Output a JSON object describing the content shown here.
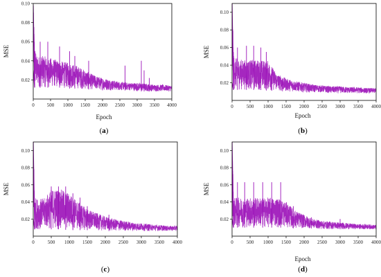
{
  "chart_data": [
    {
      "type": "line",
      "panel_label": "a",
      "xlabel": "Epoch",
      "ylabel": "MSE",
      "xlim": [
        0,
        4000
      ],
      "ylim": [
        0,
        0.1
      ],
      "x_ticks": [
        "0",
        "500",
        "1000",
        "1500",
        "2000",
        "2500",
        "3000",
        "3500",
        "4000"
      ],
      "y_ticks": [
        "0.02",
        "0.04",
        "0.06",
        "0.08",
        "0.10"
      ],
      "series": [
        {
          "color": "#9b10b8",
          "x": [
            0,
            50,
            100,
            300,
            500,
            750,
            1000,
            1250,
            1500,
            1750,
            2000,
            2250,
            2500,
            2750,
            3000,
            3250,
            3500,
            3750,
            4000
          ],
          "y_min": [
            0.03,
            0.012,
            0.012,
            0.012,
            0.012,
            0.012,
            0.011,
            0.011,
            0.01,
            0.01,
            0.009,
            0.009,
            0.009,
            0.009,
            0.008,
            0.008,
            0.008,
            0.008,
            0.008
          ],
          "y_max": [
            0.098,
            0.055,
            0.045,
            0.045,
            0.043,
            0.04,
            0.038,
            0.035,
            0.03,
            0.025,
            0.022,
            0.02,
            0.018,
            0.017,
            0.017,
            0.016,
            0.015,
            0.015,
            0.014
          ],
          "spikes": [
            [
              200,
              0.06
            ],
            [
              420,
              0.06
            ],
            [
              760,
              0.055
            ],
            [
              1050,
              0.05
            ],
            [
              1200,
              0.045
            ],
            [
              1600,
              0.04
            ],
            [
              2650,
              0.035
            ],
            [
              3120,
              0.04
            ],
            [
              3200,
              0.03
            ],
            [
              3350,
              0.022
            ]
          ]
        }
      ]
    },
    {
      "type": "line",
      "panel_label": "b",
      "xlabel": "Epoch",
      "ylabel": "MSE",
      "xlim": [
        0,
        4000
      ],
      "ylim": [
        0,
        0.11
      ],
      "x_ticks": [
        "0",
        "500",
        "1000",
        "1500",
        "2000",
        "2500",
        "3000",
        "3500",
        "4000"
      ],
      "y_ticks": [
        "0.02",
        "0.04",
        "0.06",
        "0.08",
        "0.10"
      ],
      "series": [
        {
          "color": "#9b10b8",
          "x": [
            0,
            50,
            100,
            300,
            500,
            750,
            1000,
            1250,
            1500,
            1750,
            2000,
            2250,
            2500,
            2750,
            3000,
            3250,
            3500,
            3750,
            4000
          ],
          "y_min": [
            0.02,
            0.012,
            0.012,
            0.012,
            0.012,
            0.012,
            0.011,
            0.011,
            0.01,
            0.01,
            0.009,
            0.009,
            0.009,
            0.008,
            0.008,
            0.008,
            0.008,
            0.008,
            0.008
          ],
          "y_max": [
            0.11,
            0.05,
            0.048,
            0.046,
            0.046,
            0.046,
            0.045,
            0.03,
            0.025,
            0.022,
            0.02,
            0.018,
            0.017,
            0.016,
            0.016,
            0.015,
            0.015,
            0.014,
            0.014
          ],
          "spikes": [
            [
              150,
              0.06
            ],
            [
              400,
              0.062
            ],
            [
              600,
              0.062
            ],
            [
              800,
              0.06
            ],
            [
              950,
              0.055
            ],
            [
              1100,
              0.035
            ],
            [
              1400,
              0.025
            ]
          ]
        }
      ]
    },
    {
      "type": "line",
      "panel_label": "c",
      "xlabel": "",
      "ylabel": "MSE",
      "xlim": [
        0,
        4000
      ],
      "ylim": [
        0,
        0.11
      ],
      "x_ticks": [
        "0",
        "500",
        "1000",
        "1500",
        "2000",
        "2500",
        "3000",
        "3500",
        "4000"
      ],
      "y_ticks": [
        "0.02",
        "0.04",
        "0.06",
        "0.08",
        "0.10"
      ],
      "series": [
        {
          "color": "#9b10b8",
          "x": [
            0,
            50,
            100,
            300,
            500,
            750,
            1000,
            1250,
            1500,
            1750,
            2000,
            2250,
            2500,
            2750,
            3000,
            3250,
            3500,
            3750,
            4000
          ],
          "y_min": [
            0.02,
            0.008,
            0.008,
            0.008,
            0.008,
            0.008,
            0.007,
            0.007,
            0.007,
            0.007,
            0.006,
            0.006,
            0.006,
            0.006,
            0.006,
            0.006,
            0.006,
            0.006,
            0.006
          ],
          "y_max": [
            0.11,
            0.045,
            0.044,
            0.044,
            0.055,
            0.055,
            0.05,
            0.04,
            0.032,
            0.027,
            0.023,
            0.02,
            0.018,
            0.016,
            0.015,
            0.014,
            0.013,
            0.012,
            0.012
          ],
          "spikes": [
            [
              500,
              0.058
            ],
            [
              700,
              0.058
            ],
            [
              900,
              0.058
            ],
            [
              1100,
              0.05
            ],
            [
              1300,
              0.045
            ],
            [
              1500,
              0.035
            ],
            [
              2100,
              0.025
            ]
          ]
        }
      ]
    },
    {
      "type": "line",
      "panel_label": "d",
      "xlabel": "Epoch",
      "ylabel": "MSE",
      "xlim": [
        0,
        4000
      ],
      "ylim": [
        0,
        0.11
      ],
      "x_ticks": [
        "0",
        "500",
        "1000",
        "1500",
        "2000",
        "2500",
        "3000",
        "3500",
        "4000"
      ],
      "y_ticks": [
        "0.02",
        "0.04",
        "0.06",
        "0.08",
        "0.10"
      ],
      "series": [
        {
          "color": "#9b10b8",
          "x": [
            0,
            50,
            100,
            300,
            500,
            750,
            1000,
            1250,
            1500,
            1750,
            2000,
            2250,
            2500,
            2750,
            3000,
            3250,
            3500,
            3750,
            4000
          ],
          "y_min": [
            0.02,
            0.01,
            0.01,
            0.01,
            0.01,
            0.01,
            0.01,
            0.01,
            0.01,
            0.009,
            0.009,
            0.009,
            0.008,
            0.008,
            0.008,
            0.008,
            0.008,
            0.008,
            0.008
          ],
          "y_max": [
            0.11,
            0.045,
            0.045,
            0.045,
            0.045,
            0.045,
            0.045,
            0.045,
            0.04,
            0.03,
            0.025,
            0.02,
            0.018,
            0.017,
            0.016,
            0.015,
            0.014,
            0.014,
            0.013
          ],
          "spikes": [
            [
              150,
              0.063
            ],
            [
              350,
              0.063
            ],
            [
              600,
              0.063
            ],
            [
              850,
              0.063
            ],
            [
              1100,
              0.063
            ],
            [
              1350,
              0.063
            ],
            [
              1700,
              0.035
            ],
            [
              2200,
              0.022
            ],
            [
              3000,
              0.02
            ]
          ]
        }
      ]
    }
  ]
}
